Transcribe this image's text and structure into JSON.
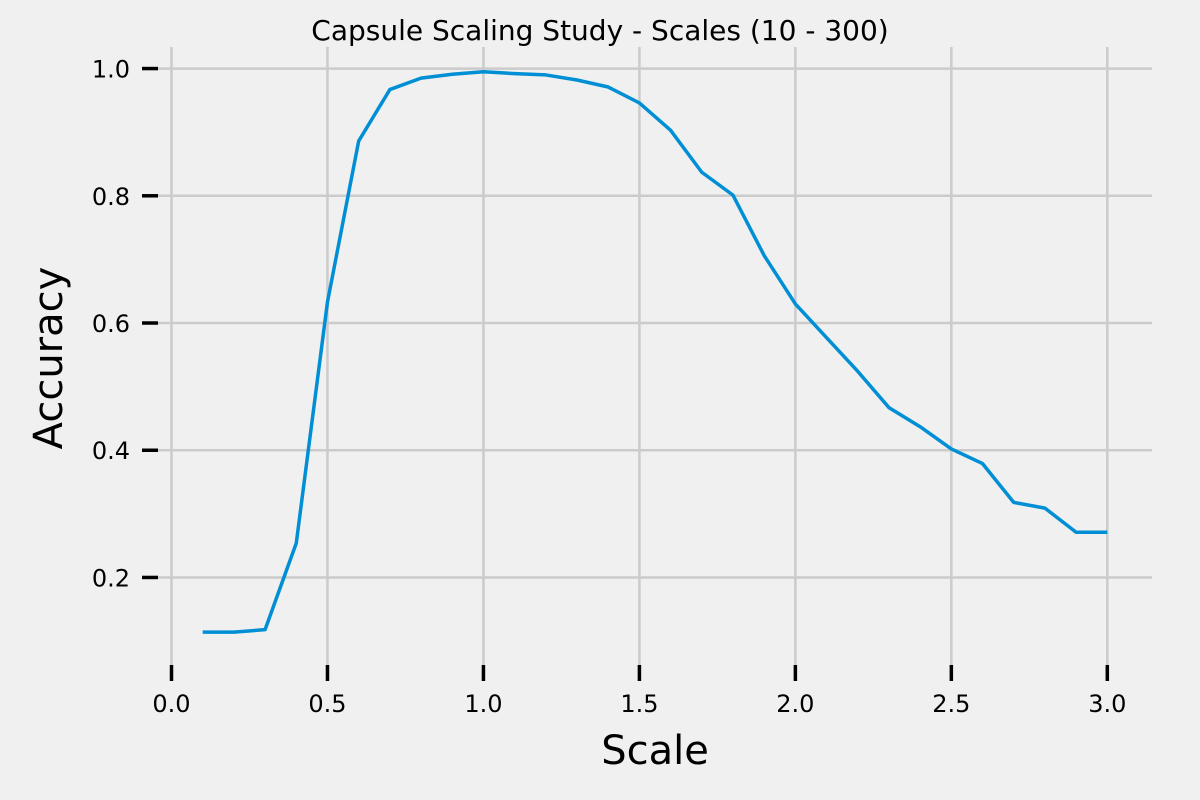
{
  "chart_data": {
    "type": "line",
    "title": "Capsule Scaling Study - Scales (10 - 300)",
    "xlabel": "Scale",
    "ylabel": "Accuracy",
    "xlim": [
      -0.0433,
      3.1433
    ],
    "ylim": [
      0.0561,
      1.0339
    ],
    "xticks": [
      0.0,
      0.5,
      1.0,
      1.5,
      2.0,
      2.5,
      3.0
    ],
    "xtick_labels": [
      "0.0",
      "0.5",
      "1.0",
      "1.5",
      "2.0",
      "2.5",
      "3.0"
    ],
    "yticks": [
      0.2,
      0.4,
      0.6,
      0.8,
      1.0
    ],
    "ytick_labels": [
      "0.2",
      "0.4",
      "0.6",
      "0.8",
      "1.0"
    ],
    "grid": true,
    "series": [
      {
        "color": "#008fd5",
        "x": [
          0.1,
          0.2,
          0.3,
          0.4,
          0.5,
          0.6,
          0.7,
          0.8,
          0.9,
          1.0,
          1.1,
          1.2,
          1.3,
          1.4,
          1.5,
          1.6,
          1.7,
          1.8,
          1.9,
          2.0,
          2.1,
          2.2,
          2.3,
          2.4,
          2.5,
          2.6,
          2.7,
          2.8,
          2.9,
          3.0
        ],
        "y": [
          0.114,
          0.114,
          0.118,
          0.254,
          0.633,
          0.886,
          0.967,
          0.985,
          0.991,
          0.995,
          0.992,
          0.99,
          0.982,
          0.971,
          0.946,
          0.903,
          0.837,
          0.801,
          0.706,
          0.63,
          0.577,
          0.524,
          0.467,
          0.437,
          0.402,
          0.379,
          0.318,
          0.309,
          0.271,
          0.271
        ]
      }
    ]
  }
}
